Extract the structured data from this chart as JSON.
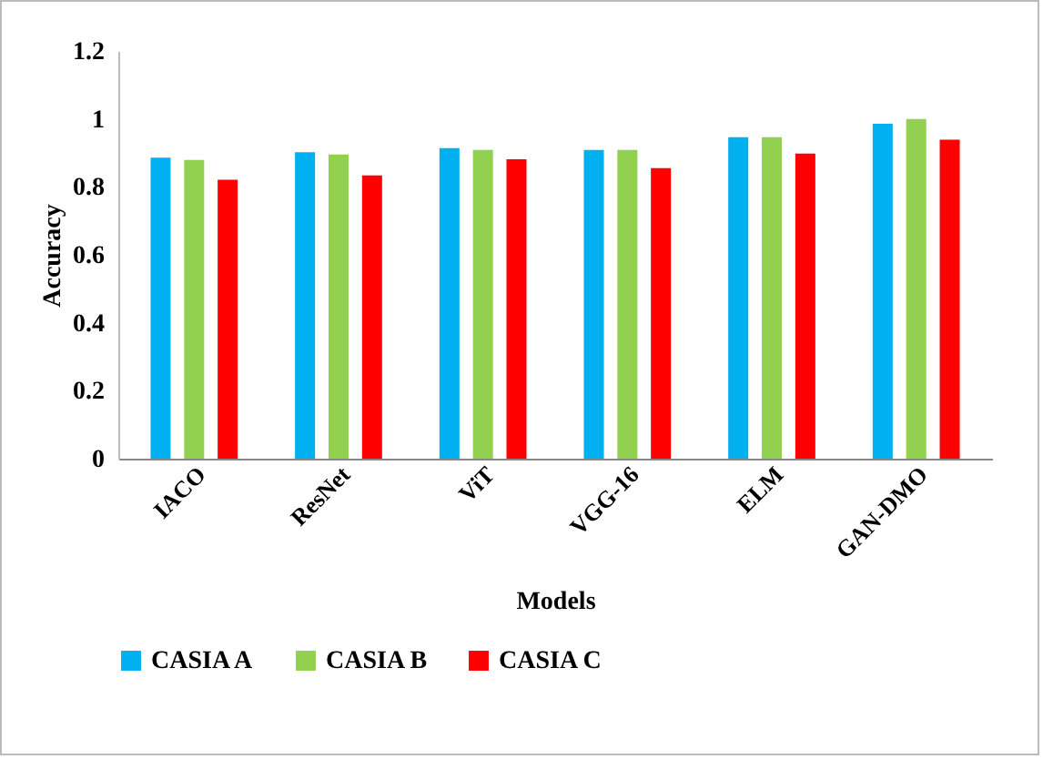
{
  "chart_data": {
    "type": "bar",
    "xlabel": "Models",
    "ylabel": "Accuracy",
    "categories": [
      "IACO",
      "ResNet",
      "ViT",
      "VGG-16",
      "ELM",
      "GAN-DMO"
    ],
    "series": [
      {
        "name": "CASIA A",
        "color": "#00b0f0",
        "values": [
          0.886,
          0.902,
          0.914,
          0.909,
          0.946,
          0.986
        ]
      },
      {
        "name": "CASIA B",
        "color": "#92d050",
        "values": [
          0.879,
          0.895,
          0.909,
          0.909,
          0.946,
          1.0
        ]
      },
      {
        "name": "CASIA C",
        "color": "#ff0000",
        "values": [
          0.821,
          0.834,
          0.881,
          0.855,
          0.898,
          0.939
        ]
      }
    ],
    "ylim": [
      0,
      1.2
    ],
    "yticks": [
      0,
      0.2,
      0.4,
      0.6,
      0.8,
      1,
      1.2
    ],
    "grid": false,
    "legend": "bottom"
  }
}
